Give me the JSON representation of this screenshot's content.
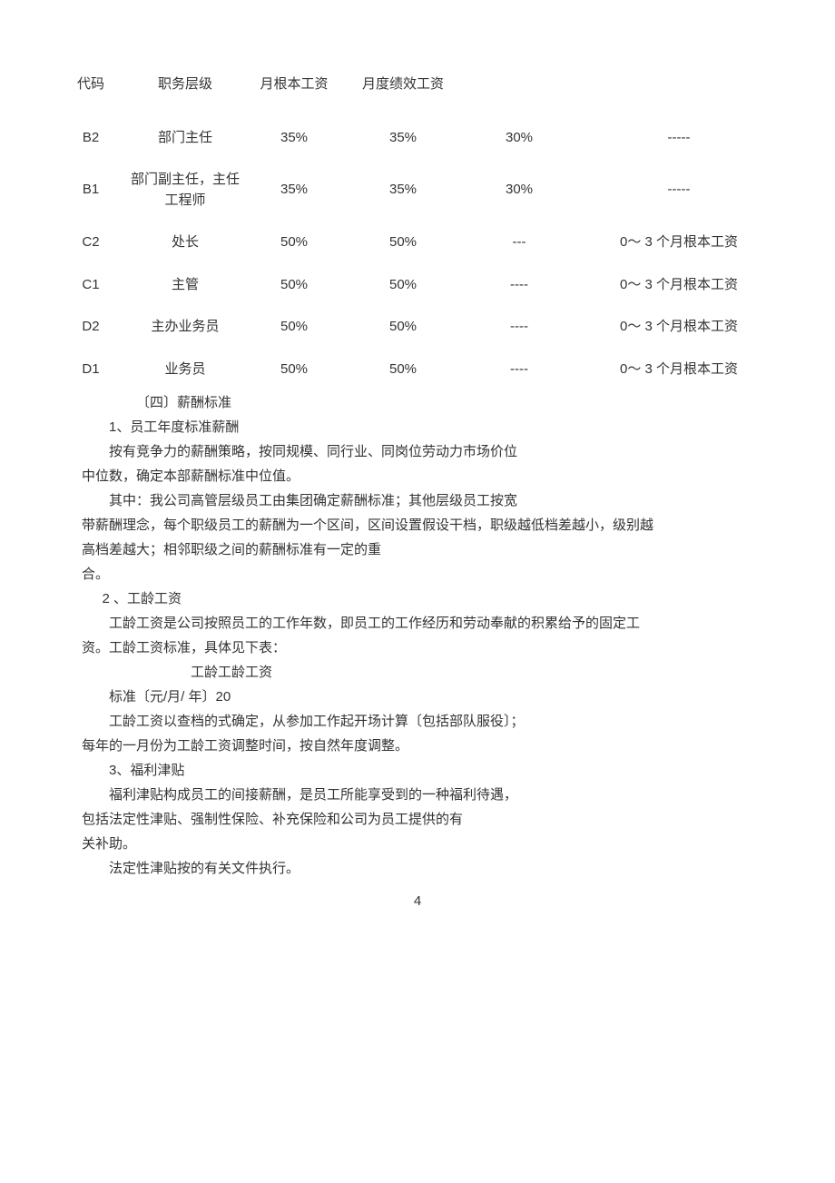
{
  "table": {
    "headers": [
      "代码",
      "职务层级",
      "月根本工资",
      "月度绩效工资",
      "",
      ""
    ],
    "rows": [
      {
        "code": "B2",
        "level": "部门主任",
        "base": "35%",
        "perf": "35%",
        "extra1": "30%",
        "extra2": "-----"
      },
      {
        "code": "B1",
        "level": "部门副主任，主任工程师",
        "base": "35%",
        "perf": "35%",
        "extra1": "30%",
        "extra2": "-----"
      },
      {
        "code": "C2",
        "level": "处长",
        "base": "50%",
        "perf": "50%",
        "extra1": "---",
        "extra2": "0～ 3 个月根本工资"
      },
      {
        "code": "C1",
        "level": "主管",
        "base": "50%",
        "perf": "50%",
        "extra1": "----",
        "extra2": "0～ 3 个月根本工资"
      },
      {
        "code": "D2",
        "level": "主办业务员",
        "base": "50%",
        "perf": "50%",
        "extra1": "----",
        "extra2": "0～ 3 个月根本工资"
      },
      {
        "code": "D1",
        "level": "业务员",
        "base": "50%",
        "perf": "50%",
        "extra1": "----",
        "extra2": "0～ 3 个月根本工资"
      }
    ]
  },
  "body": {
    "p1": "〔四〕薪酬标准",
    "p2": "1、员工年度标准薪酬",
    "p3": "按有竞争力的薪酬策略，按同规模、同行业、同岗位劳动力市场价位",
    "p4": "中位数，确定本部薪酬标准中位值。",
    "p5": "其中：我公司高管层级员工由集团确定薪酬标准；其他层级员工按宽",
    "p6": "带薪酬理念，每个职级员工的薪酬为一个区间，区间设置假设干档，职级越低档差越小，级别越",
    "p7": "高档差越大；相邻职级之间的薪酬标准有一定的重",
    "p8": "合。",
    "p9": "2   、工龄工资",
    "p10": "工龄工资是公司按照员工的工作年数，即员工的工作经历和劳动奉献的积累给予的固定工",
    "p11": "资。工龄工资标准，具体见下表：",
    "p12": "工龄工龄工资",
    "p13": "标准〔元/月/ 年〕20",
    "p14": "工龄工资以查档的式确定，从参加工作起开场计算〔包括部队服役〕；",
    "p15": "每年的一月份为工龄工资调整时间，按自然年度调整。",
    "p16": "3、福利津贴",
    "p17": "福利津贴构成员工的间接薪酬，是员工所能享受到的一种福利待遇，",
    "p18": "包括法定性津贴、强制性保险、补充保险和公司为员工提供的有",
    "p19": "关补助。",
    "p20": "法定性津贴按的有关文件执行。"
  },
  "pagenum": "4"
}
